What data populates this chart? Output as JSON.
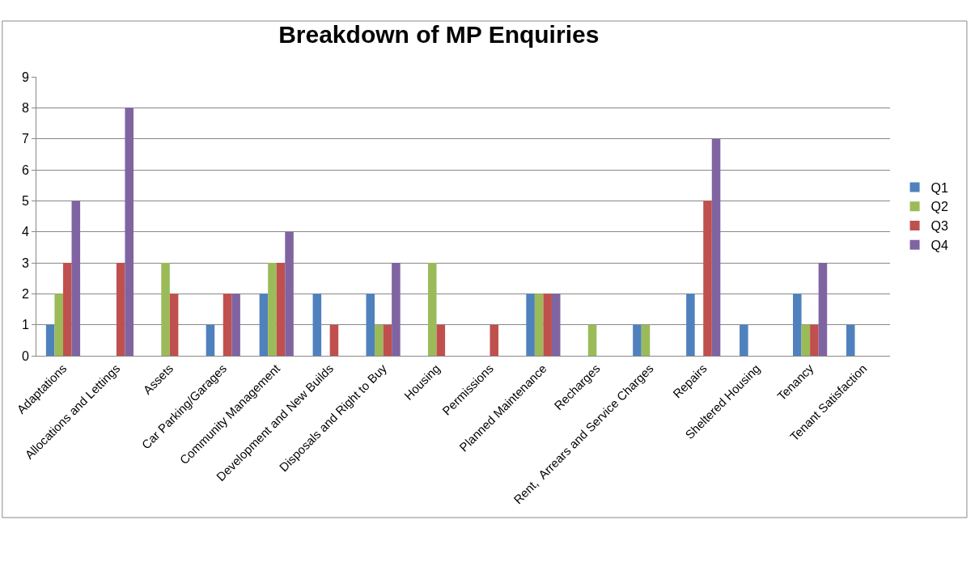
{
  "chart_data": {
    "type": "bar",
    "title": "Breakdown of MP Enquiries",
    "categories": [
      "Adaptations",
      "Allocations and Lettings",
      "Assets",
      "Car Parking/Garages",
      "Community Management",
      "Development and New Builds",
      "Disposals and Right to Buy",
      "Housing",
      "Permissions",
      "Planned Maintenance",
      "Recharges",
      "Rent,  Arrears and Service Charges",
      "Repairs",
      "Sheltered Housing",
      "Tenancy",
      "Tenant Satisfaction"
    ],
    "series": [
      {
        "name": "Q1",
        "color": "#4f81bd",
        "values": [
          1,
          0,
          0,
          1,
          2,
          2,
          2,
          0,
          0,
          2,
          0,
          1,
          2,
          1,
          2,
          1
        ]
      },
      {
        "name": "Q2",
        "color": "#9bbb59",
        "values": [
          2,
          0,
          3,
          0,
          3,
          0,
          1,
          3,
          0,
          2,
          1,
          1,
          0,
          0,
          1,
          0
        ]
      },
      {
        "name": "Q3",
        "color": "#c0504d",
        "values": [
          3,
          3,
          2,
          2,
          3,
          1,
          1,
          1,
          1,
          2,
          0,
          0,
          5,
          0,
          1,
          0
        ]
      },
      {
        "name": "Q4",
        "color": "#8064a2",
        "values": [
          5,
          8,
          0,
          2,
          4,
          0,
          3,
          0,
          0,
          2,
          0,
          0,
          7,
          0,
          3,
          0
        ]
      }
    ],
    "ylim": [
      0,
      9
    ],
    "yticks": [
      0,
      1,
      2,
      3,
      4,
      5,
      6,
      7,
      8,
      9
    ],
    "grid": "y",
    "legend": "right"
  }
}
